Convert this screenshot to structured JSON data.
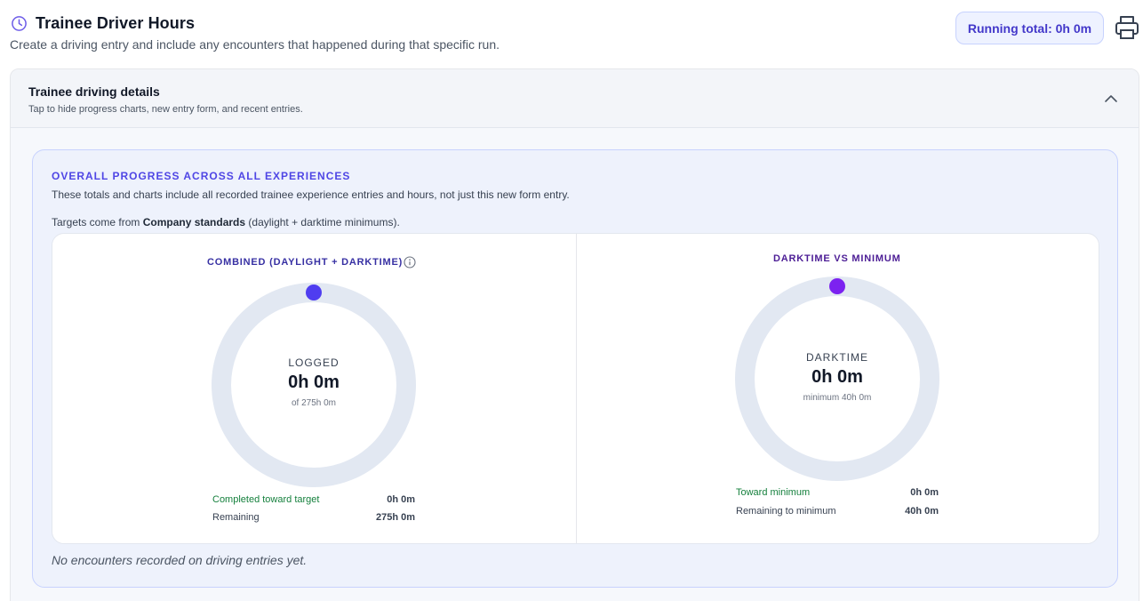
{
  "header": {
    "title": "Trainee Driver Hours",
    "subtitle": "Create a driving entry and include any encounters that happened during that specific run.",
    "running_total": "Running total: 0h 0m"
  },
  "panel": {
    "title": "Trainee driving details",
    "hint": "Tap to hide progress charts, new entry form, and recent entries."
  },
  "progress": {
    "heading": "OVERALL PROGRESS ACROSS ALL EXPERIENCES",
    "description": "These totals and charts include all recorded trainee experience entries and hours, not just this new form entry.",
    "targets_prefix": "Targets come from ",
    "targets_source": "Company standards",
    "targets_suffix": " (daylight + darktime minimums).",
    "empty_note": "No encounters recorded on driving entries yet."
  },
  "colors": {
    "combined_accent": "#4f3df0",
    "darktime_accent": "#7c22f0",
    "ring_track": "#e2e8f2"
  },
  "charts": {
    "combined": {
      "title": "COMBINED (DAYLIGHT + DARKTIME)",
      "center_label": "LOGGED",
      "center_value": "0h 0m",
      "center_sub": "of 275h 0m",
      "progress_fraction": 0,
      "stats": [
        {
          "label": "Completed toward target",
          "value": "0h 0m"
        },
        {
          "label": "Remaining",
          "value": "275h 0m"
        }
      ]
    },
    "darktime": {
      "title": "DARKTIME VS MINIMUM",
      "center_label": "DARKTIME",
      "center_value": "0h 0m",
      "center_sub": "minimum 40h 0m",
      "progress_fraction": 0,
      "stats": [
        {
          "label": "Toward minimum",
          "value": "0h 0m"
        },
        {
          "label": "Remaining to minimum",
          "value": "40h 0m"
        }
      ]
    }
  }
}
